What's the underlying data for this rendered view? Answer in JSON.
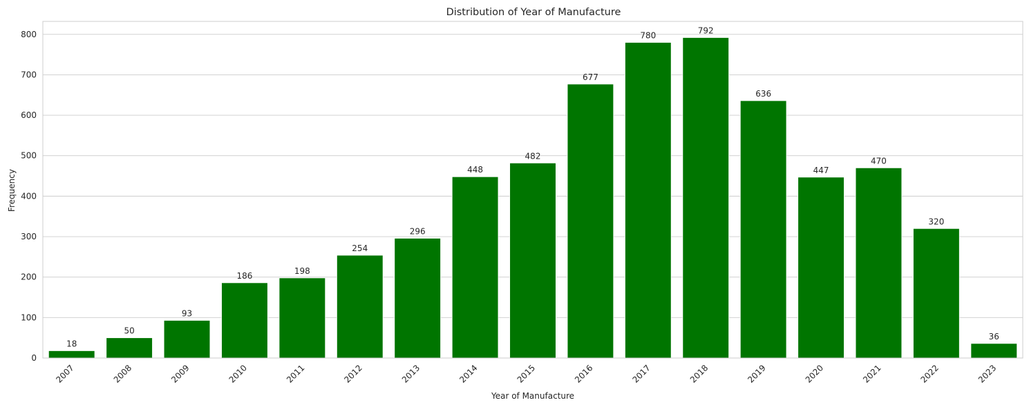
{
  "chart_data": {
    "type": "bar",
    "title": "Distribution of Year of Manufacture",
    "xlabel": "Year of Manufacture",
    "ylabel": "Frequency",
    "categories": [
      "2007",
      "2008",
      "2009",
      "2010",
      "2011",
      "2012",
      "2013",
      "2014",
      "2015",
      "2016",
      "2017",
      "2018",
      "2019",
      "2020",
      "2021",
      "2022",
      "2023"
    ],
    "values": [
      18,
      50,
      93,
      186,
      198,
      254,
      296,
      448,
      482,
      677,
      780,
      792,
      636,
      447,
      470,
      320,
      36
    ],
    "ylim": [
      0,
      832
    ],
    "yticks": [
      0,
      100,
      200,
      300,
      400,
      500,
      600,
      700,
      800
    ],
    "grid": true,
    "bar_color": "#007500",
    "xtick_rotation": -45,
    "data_labels": true
  }
}
